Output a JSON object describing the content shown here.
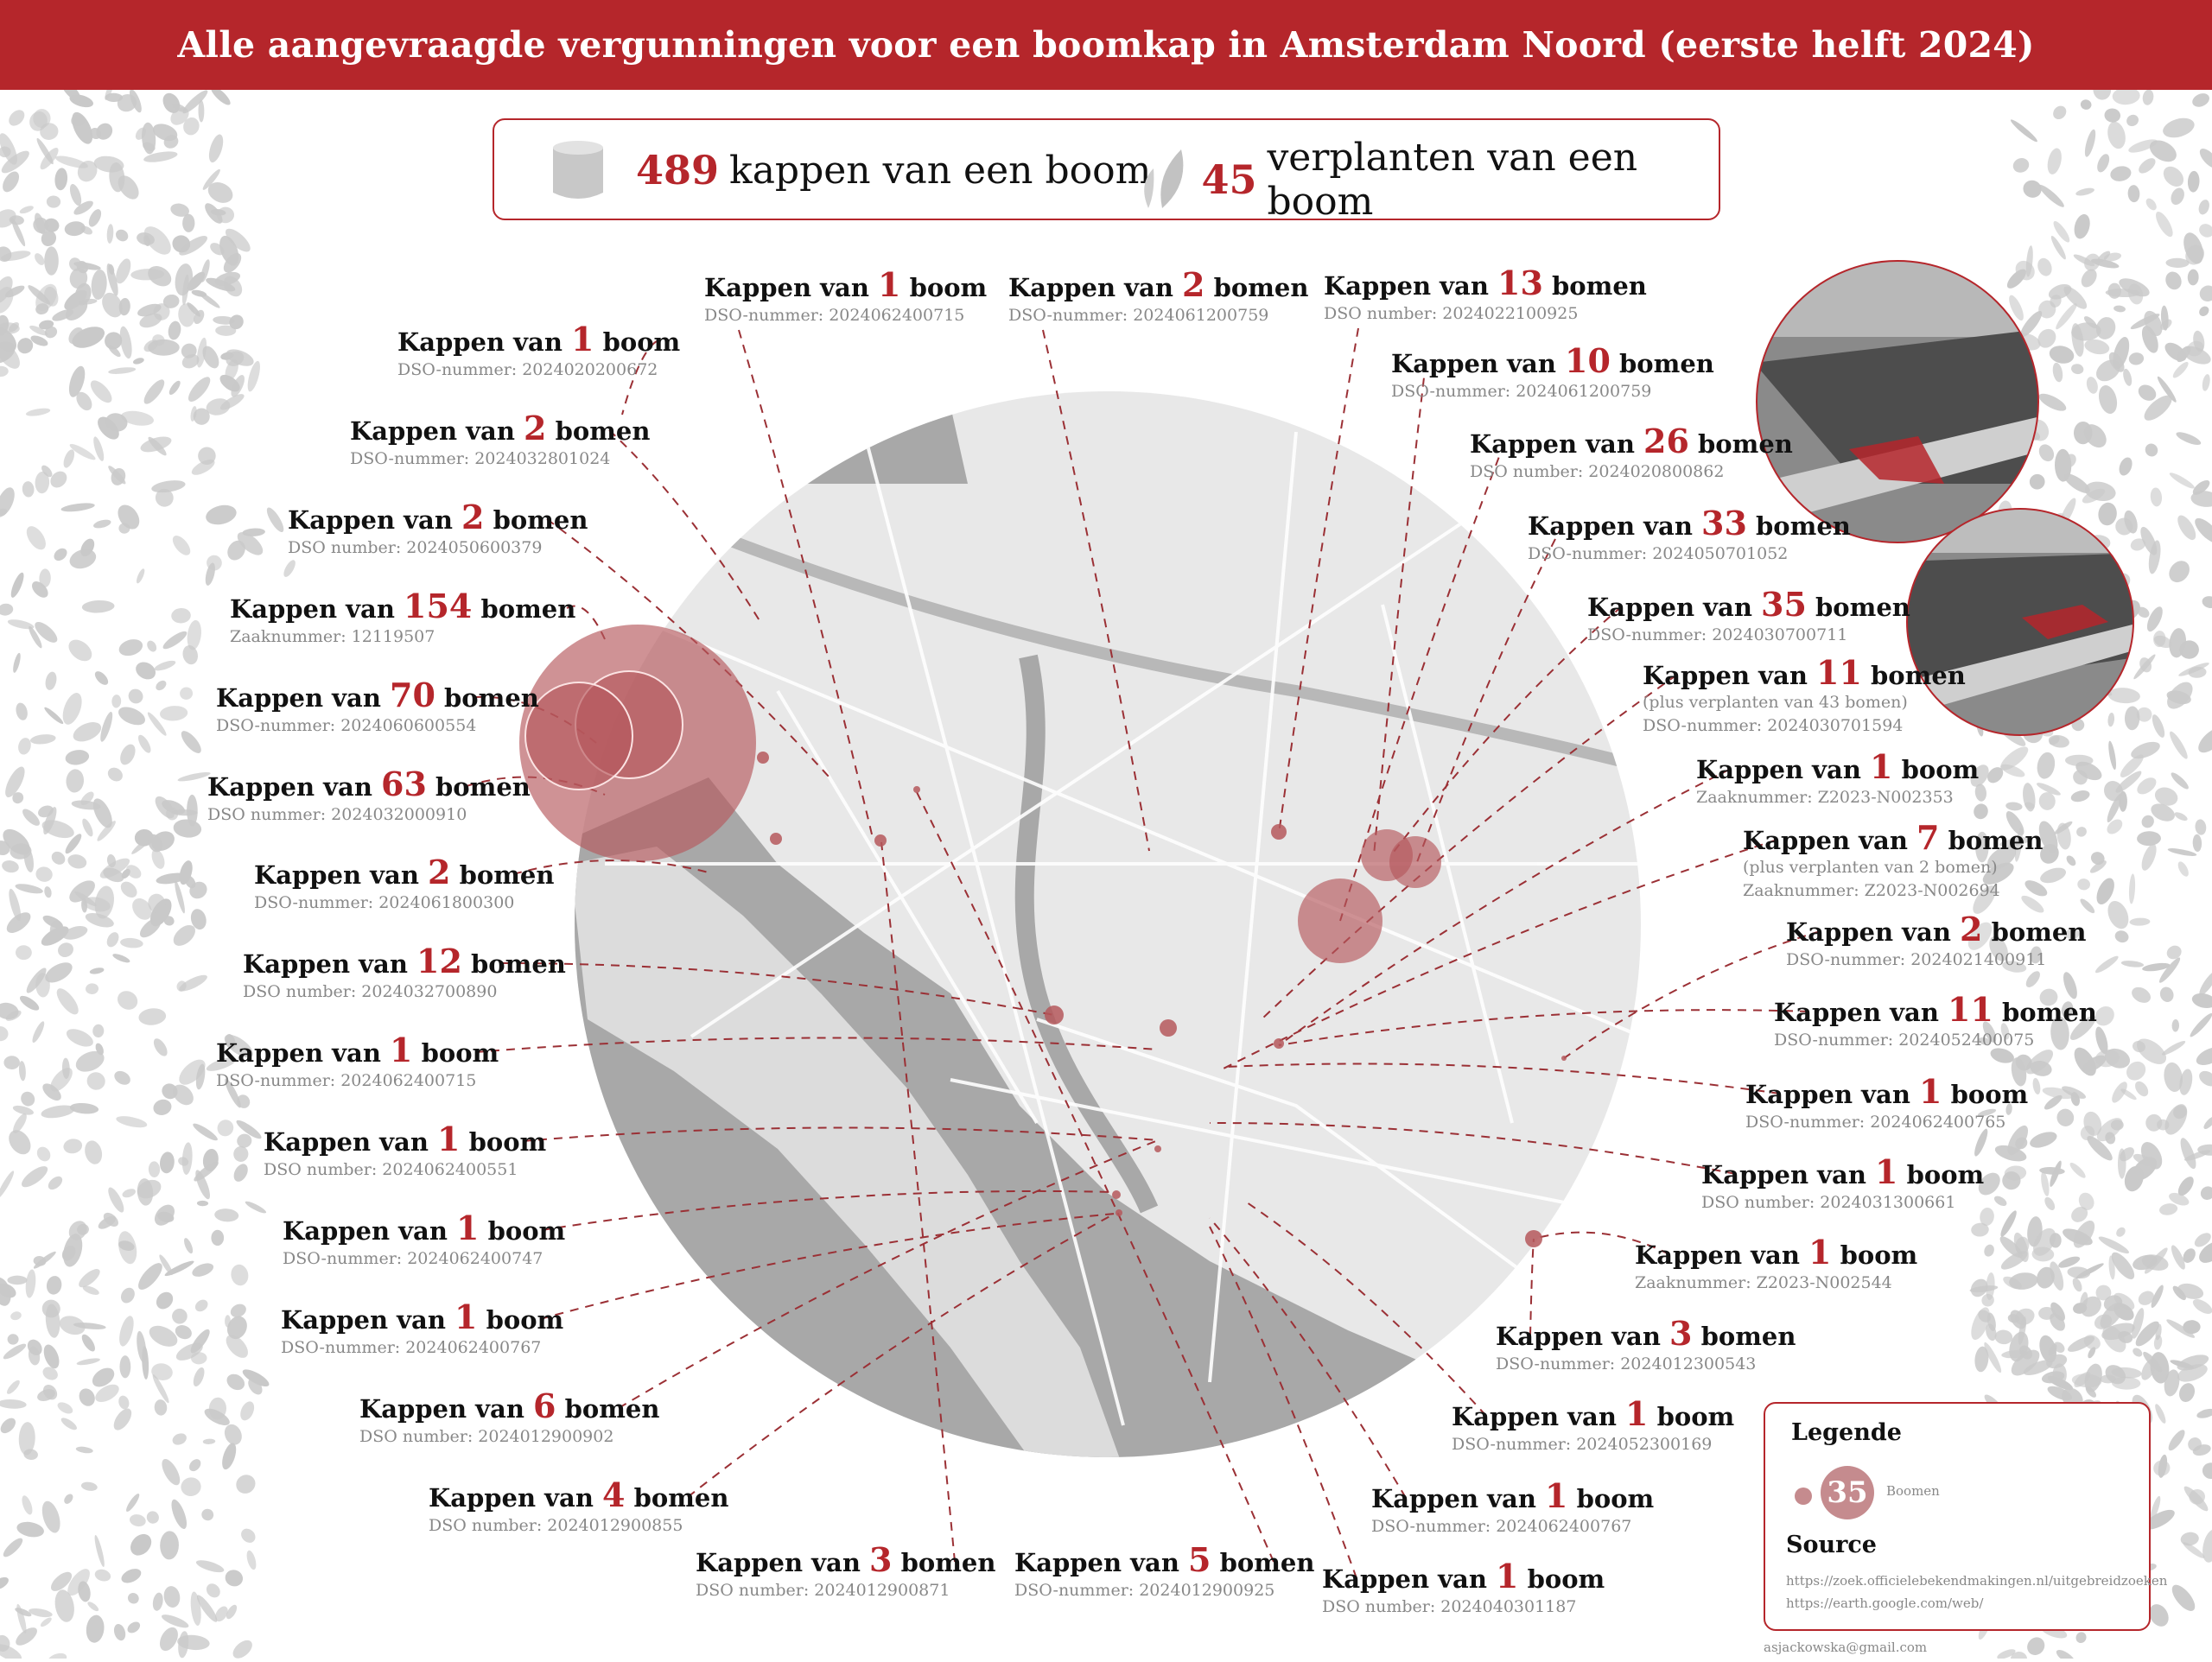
{
  "title": "Alle aangevraagde vergunningen voor een boomkap in Amsterdam Noord (eerste helft 2024)",
  "summary": {
    "felling_count": "489",
    "felling_text": "kappen van een boom",
    "felling_icon": "tree-stump-icon",
    "replant_count": "45",
    "replant_text": "verplanten van een boom",
    "replant_icon": "leaf-icon"
  },
  "colors": {
    "accent": "#b5262b",
    "bubble": "#b5585c",
    "map_land": "#e6e6e6",
    "map_water": "#a9a9a9"
  },
  "labels": [
    {
      "pre": "Kappen van",
      "count": "1",
      "unit": "boom",
      "id": "DSO-nummer: 2024020200672"
    },
    {
      "pre": "Kappen van",
      "count": "2",
      "unit": "bomen",
      "id": "DSO-nummer: 2024032801024"
    },
    {
      "pre": "Kappen van",
      "count": "2",
      "unit": "bomen",
      "id": "DSO number: 2024050600379"
    },
    {
      "pre": "Kappen van",
      "count": "154",
      "unit": "bomen",
      "id": "Zaaknummer: 12119507"
    },
    {
      "pre": "Kappen van",
      "count": "70",
      "unit": "bomen",
      "id": "DSO-nummer: 2024060600554"
    },
    {
      "pre": "Kappen van",
      "count": "63",
      "unit": "bomen",
      "id": "DSO nummer: 2024032000910"
    },
    {
      "pre": "Kappen van",
      "count": "2",
      "unit": "bomen",
      "id": "DSO-nummer: 2024061800300"
    },
    {
      "pre": "Kappen van",
      "count": "12",
      "unit": "bomen",
      "id": "DSO number: 2024032700890"
    },
    {
      "pre": "Kappen van",
      "count": "1",
      "unit": "boom",
      "id": "DSO-nummer: 2024062400715"
    },
    {
      "pre": "Kappen van",
      "count": "1",
      "unit": "boom",
      "id": "DSO number: 2024062400551"
    },
    {
      "pre": "Kappen van",
      "count": "1",
      "unit": "boom",
      "id": "DSO-nummer: 2024062400747"
    },
    {
      "pre": "Kappen van",
      "count": "1",
      "unit": "boom",
      "id": "DSO-nummer: 2024062400767"
    },
    {
      "pre": "Kappen van",
      "count": "6",
      "unit": "bomen",
      "id": "DSO number: 2024012900902"
    },
    {
      "pre": "Kappen van",
      "count": "4",
      "unit": "bomen",
      "id": "DSO number: 2024012900855"
    },
    {
      "pre": "Kappen van",
      "count": "3",
      "unit": "bomen",
      "id": "DSO number: 2024012900871"
    },
    {
      "pre": "Kappen van",
      "count": "5",
      "unit": "bomen",
      "id": "DSO-nummer: 2024012900925"
    },
    {
      "pre": "Kappen van",
      "count": "1",
      "unit": "boom",
      "id": "DSO-nummer: 2024062400715"
    },
    {
      "pre": "Kappen van",
      "count": "2",
      "unit": "bomen",
      "id": "DSO-nummer: 2024061200759"
    },
    {
      "pre": "Kappen van",
      "count": "13",
      "unit": "bomen",
      "id": "DSO number: 2024022100925"
    },
    {
      "pre": "Kappen van",
      "count": "10",
      "unit": "bomen",
      "id": "DSO-nummer: 2024061200759"
    },
    {
      "pre": "Kappen van",
      "count": "26",
      "unit": "bomen",
      "id": "DSO number: 2024020800862"
    },
    {
      "pre": "Kappen van",
      "count": "33",
      "unit": "bomen",
      "id": "DSO-nummer: 2024050701052"
    },
    {
      "pre": "Kappen van",
      "count": "35",
      "unit": "bomen",
      "id": "DSO-nummer: 2024030700711"
    },
    {
      "pre": "Kappen van",
      "count": "11",
      "unit": "bomen",
      "note": "(plus verplanten van 43 bomen)",
      "id": "DSO-nummer: 2024030701594"
    },
    {
      "pre": "Kappen van",
      "count": "1",
      "unit": "boom",
      "id": "Zaaknummer: Z2023-N002353"
    },
    {
      "pre": "Kappen van",
      "count": "7",
      "unit": "bomen",
      "note": "(plus verplanten van 2 bomen)",
      "id": "Zaaknummer: Z2023-N002694"
    },
    {
      "pre": "Kappen van",
      "count": "2",
      "unit": "bomen",
      "id": "DSO-nummer: 2024021400911"
    },
    {
      "pre": "Kappen van",
      "count": "11",
      "unit": "bomen",
      "id": "DSO-nummer: 2024052400075"
    },
    {
      "pre": "Kappen van",
      "count": "1",
      "unit": "boom",
      "id": "DSO-nummer: 2024062400765"
    },
    {
      "pre": "Kappen van",
      "count": "1",
      "unit": "boom",
      "id": "DSO number: 2024031300661"
    },
    {
      "pre": "Kappen van",
      "count": "1",
      "unit": "boom",
      "id": "Zaaknummer: Z2023-N002544"
    },
    {
      "pre": "Kappen van",
      "count": "3",
      "unit": "bomen",
      "id": "DSO-nummer: 2024012300543"
    },
    {
      "pre": "Kappen van",
      "count": "1",
      "unit": "boom",
      "id": "DSO-nummer: 2024052300169"
    },
    {
      "pre": "Kappen van",
      "count": "1",
      "unit": "boom",
      "id": "DSO-nummer: 2024062400767"
    },
    {
      "pre": "Kappen van",
      "count": "1",
      "unit": "boom",
      "id": "DSO number: 2024040301187"
    }
  ],
  "legend": {
    "title": "Legende",
    "sample_value": "35",
    "unit": "Boomen",
    "source_title": "Source",
    "sources": [
      "https://zoek.officielebekendmakingen.nl/uitgebreidzoeken",
      "https://earth.google.com/web/"
    ]
  },
  "credit": "asjackowska@gmail.com"
}
